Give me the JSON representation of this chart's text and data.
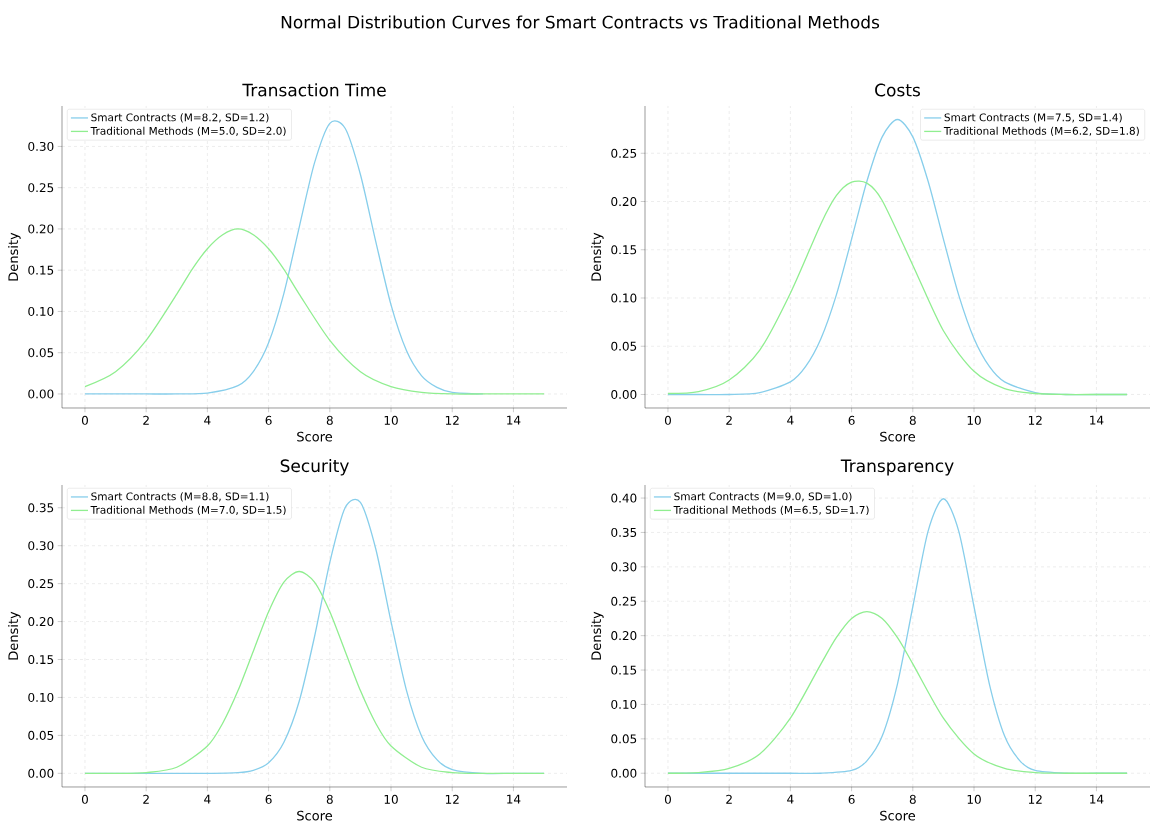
{
  "chart_data": [
    {
      "type": "line",
      "title": "Transaction Time",
      "xlabel": "Score",
      "ylabel": "Density",
      "annotations": [
        "Normal Distribution Curves for Smart Contracts vs Traditional Methods"
      ],
      "legend": "top left",
      "grid": true,
      "xlim": [
        -0.75,
        15.75
      ],
      "xticks": [
        0,
        2,
        4,
        6,
        8,
        10,
        12,
        14
      ],
      "ylim": [
        -0.017,
        0.349
      ],
      "yticks": [
        {
          "value": 0,
          "label": "0.00"
        },
        {
          "value": 0.05,
          "label": "0.05"
        },
        {
          "value": 0.1,
          "label": "0.10"
        },
        {
          "value": 0.15,
          "label": "0.15"
        },
        {
          "value": 0.2,
          "label": "0.20"
        },
        {
          "value": 0.25,
          "label": "0.25"
        },
        {
          "value": 0.3,
          "label": "0.30"
        }
      ],
      "series": [
        {
          "name": "Smart Contracts (M=8.2, SD=1.2)",
          "color": "#87ceeb",
          "x": [
            0,
            1,
            2,
            3,
            4,
            5,
            5.5,
            6,
            6.5,
            7,
            7.5,
            8,
            8.5,
            9,
            9.5,
            10,
            10.5,
            11,
            11.5,
            12,
            13
          ],
          "values": [
            0,
            0,
            0,
            0,
            0.001,
            0.01,
            0.027,
            0.062,
            0.122,
            0.202,
            0.28,
            0.328,
            0.322,
            0.266,
            0.185,
            0.108,
            0.053,
            0.022,
            0.008,
            0.002,
            0
          ]
        },
        {
          "name": "Traditional Methods (M=5.0, SD=2.0)",
          "color": "#90ee90",
          "x": [
            0,
            1,
            2,
            3,
            3.5,
            4,
            4.5,
            5,
            5.5,
            6,
            6.5,
            7,
            8,
            9,
            10,
            11,
            12,
            13,
            14,
            15
          ],
          "values": [
            0.009,
            0.027,
            0.065,
            0.121,
            0.151,
            0.176,
            0.193,
            0.2,
            0.193,
            0.176,
            0.151,
            0.121,
            0.065,
            0.027,
            0.009,
            0.002,
            0,
            0,
            0,
            0
          ]
        }
      ]
    },
    {
      "type": "line",
      "title": "Costs",
      "xlabel": "Score",
      "ylabel": "Density",
      "legend": "top right",
      "grid": true,
      "xlim": [
        -0.75,
        15.75
      ],
      "xticks": [
        0,
        2,
        4,
        6,
        8,
        10,
        12,
        14
      ],
      "ylim": [
        -0.014,
        0.299
      ],
      "yticks": [
        {
          "value": 0,
          "label": "0.00"
        },
        {
          "value": 0.05,
          "label": "0.05"
        },
        {
          "value": 0.1,
          "label": "0.10"
        },
        {
          "value": 0.15,
          "label": "0.15"
        },
        {
          "value": 0.2,
          "label": "0.20"
        },
        {
          "value": 0.25,
          "label": "0.25"
        }
      ],
      "series": [
        {
          "name": "Smart Contracts (M=7.5, SD=1.4)",
          "color": "#87ceeb",
          "x": [
            0,
            1,
            2,
            3,
            4,
            4.5,
            5,
            5.5,
            6,
            6.5,
            7,
            7.5,
            8,
            8.5,
            9,
            9.5,
            10,
            10.5,
            11,
            12,
            13,
            14,
            15
          ],
          "values": [
            0,
            0,
            0,
            0.002,
            0.013,
            0.029,
            0.058,
            0.103,
            0.161,
            0.221,
            0.267,
            0.285,
            0.267,
            0.221,
            0.161,
            0.103,
            0.058,
            0.029,
            0.013,
            0.002,
            0,
            0,
            0
          ]
        },
        {
          "name": "Traditional Methods (M=6.2, SD=1.8)",
          "color": "#90ee90",
          "x": [
            0,
            1,
            2,
            3,
            4,
            5,
            5.5,
            6,
            6.5,
            7,
            8,
            9,
            10,
            11,
            12,
            13,
            14,
            15
          ],
          "values": [
            0.001,
            0.003,
            0.015,
            0.046,
            0.105,
            0.177,
            0.206,
            0.22,
            0.219,
            0.201,
            0.134,
            0.066,
            0.024,
            0.006,
            0.001,
            0,
            0,
            0
          ]
        }
      ]
    },
    {
      "type": "line",
      "title": "Security",
      "xlabel": "Score",
      "ylabel": "Density",
      "legend": "top left",
      "grid": true,
      "xlim": [
        -0.75,
        15.75
      ],
      "xticks": [
        0,
        2,
        4,
        6,
        8,
        10,
        12,
        14
      ],
      "ylim": [
        -0.018,
        0.38
      ],
      "yticks": [
        {
          "value": 0,
          "label": "0.00"
        },
        {
          "value": 0.05,
          "label": "0.05"
        },
        {
          "value": 0.1,
          "label": "0.10"
        },
        {
          "value": 0.15,
          "label": "0.15"
        },
        {
          "value": 0.2,
          "label": "0.20"
        },
        {
          "value": 0.25,
          "label": "0.25"
        },
        {
          "value": 0.3,
          "label": "0.30"
        },
        {
          "value": 0.35,
          "label": "0.35"
        }
      ],
      "series": [
        {
          "name": "Smart Contracts (M=8.8, SD=1.1)",
          "color": "#87ceeb",
          "x": [
            0,
            1,
            2,
            3,
            4,
            5,
            5.5,
            6,
            6.5,
            7,
            7.5,
            8,
            8.5,
            9,
            9.5,
            10,
            10.5,
            11,
            11.5,
            12,
            13,
            14,
            15
          ],
          "values": [
            0,
            0,
            0,
            0,
            0,
            0.001,
            0.004,
            0.014,
            0.041,
            0.095,
            0.18,
            0.278,
            0.35,
            0.357,
            0.296,
            0.2,
            0.11,
            0.049,
            0.018,
            0.005,
            0,
            0,
            0
          ]
        },
        {
          "name": "Traditional Methods (M=7.0, SD=1.5)",
          "color": "#90ee90",
          "x": [
            0,
            1,
            2,
            3,
            4,
            4.5,
            5,
            5.5,
            6,
            6.5,
            7,
            7.5,
            8,
            8.5,
            9,
            9.5,
            10,
            11,
            12,
            13,
            14,
            15
          ],
          "values": [
            0,
            0,
            0.001,
            0.008,
            0.036,
            0.066,
            0.109,
            0.161,
            0.213,
            0.252,
            0.266,
            0.252,
            0.213,
            0.161,
            0.109,
            0.066,
            0.036,
            0.008,
            0.001,
            0,
            0,
            0
          ]
        }
      ]
    },
    {
      "type": "line",
      "title": "Transparency",
      "xlabel": "Score",
      "ylabel": "Density",
      "legend": "top left",
      "grid": true,
      "xlim": [
        -0.75,
        15.75
      ],
      "xticks": [
        0,
        2,
        4,
        6,
        8,
        10,
        12,
        14
      ],
      "ylim": [
        -0.02,
        0.419
      ],
      "yticks": [
        {
          "value": 0,
          "label": "0.00"
        },
        {
          "value": 0.05,
          "label": "0.05"
        },
        {
          "value": 0.1,
          "label": "0.10"
        },
        {
          "value": 0.15,
          "label": "0.15"
        },
        {
          "value": 0.2,
          "label": "0.20"
        },
        {
          "value": 0.25,
          "label": "0.25"
        },
        {
          "value": 0.3,
          "label": "0.30"
        },
        {
          "value": 0.35,
          "label": "0.35"
        },
        {
          "value": 0.4,
          "label": "0.40"
        }
      ],
      "series": [
        {
          "name": "Smart Contracts (M=9.0, SD=1.0)",
          "color": "#87ceeb",
          "x": [
            0,
            1,
            2,
            3,
            4,
            5,
            6,
            6.5,
            7,
            7.5,
            8,
            8.5,
            9,
            9.5,
            10,
            10.5,
            11,
            11.5,
            12,
            13,
            14,
            15
          ],
          "values": [
            0,
            0,
            0,
            0,
            0,
            0,
            0.004,
            0.018,
            0.054,
            0.13,
            0.242,
            0.352,
            0.399,
            0.352,
            0.242,
            0.13,
            0.054,
            0.018,
            0.004,
            0,
            0,
            0
          ]
        },
        {
          "name": "Traditional Methods (M=6.5, SD=1.7)",
          "color": "#90ee90",
          "x": [
            0,
            1,
            2,
            3,
            4,
            5,
            5.5,
            6,
            6.5,
            7,
            7.5,
            8,
            9,
            10,
            11,
            12,
            13,
            14,
            15
          ],
          "values": [
            0,
            0.001,
            0.007,
            0.028,
            0.08,
            0.159,
            0.197,
            0.225,
            0.235,
            0.225,
            0.197,
            0.159,
            0.08,
            0.028,
            0.007,
            0.001,
            0,
            0,
            0
          ]
        }
      ]
    }
  ]
}
